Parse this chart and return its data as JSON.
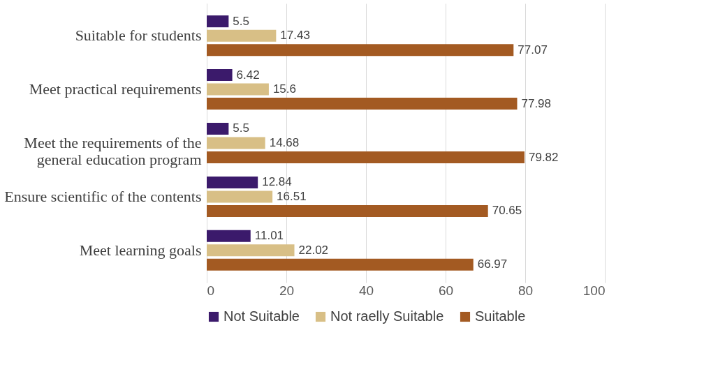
{
  "chart_data": {
    "type": "bar",
    "orientation": "horizontal",
    "categories": [
      "Suitable for students",
      "Meet practical requirements",
      "Meet the requirements of the\ngeneral education program",
      "Ensure scientific of the contents",
      "Meet learning goals"
    ],
    "series": [
      {
        "name": "Not Suitable",
        "color": "#3b1a6b",
        "values": [
          5.5,
          6.42,
          5.5,
          12.84,
          11.01
        ]
      },
      {
        "name": "Not raelly Suitable",
        "color": "#d8bf86",
        "values": [
          17.43,
          15.6,
          14.68,
          16.51,
          22.02
        ]
      },
      {
        "name": "Suitable",
        "color": "#a35a22",
        "values": [
          77.07,
          77.98,
          79.82,
          70.65,
          66.97
        ]
      }
    ],
    "xlim": [
      0,
      100
    ],
    "xticks": [
      0,
      20,
      40,
      60,
      80,
      100
    ],
    "grid": "x",
    "legend": "bottom",
    "data_labels": true
  }
}
